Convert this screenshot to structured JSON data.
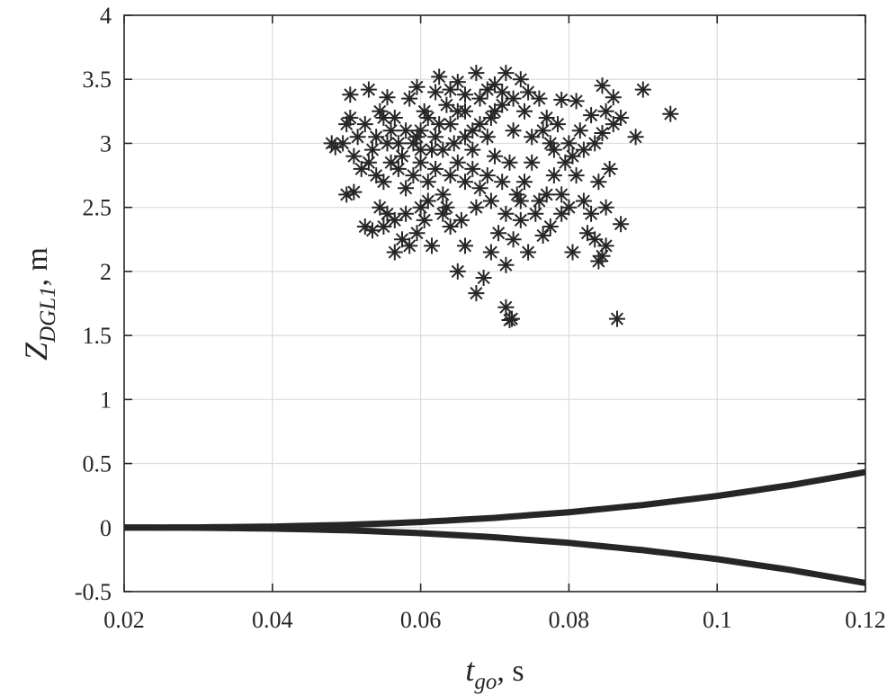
{
  "chart_data": {
    "type": "scatter",
    "xlabel": {
      "main": "t",
      "sub": "go",
      "suffix": ", s"
    },
    "ylabel": {
      "main": "Z",
      "sub": "DGL1",
      "suffix": ", m"
    },
    "xlim": [
      0.02,
      0.12
    ],
    "ylim": [
      -0.5,
      4
    ],
    "x_ticks": [
      0.02,
      0.04,
      0.06,
      0.08,
      0.1,
      0.12
    ],
    "x_tick_labels": [
      "0.02",
      "0.04",
      "0.06",
      "0.08",
      "0.1",
      "0.12"
    ],
    "y_ticks": [
      -0.5,
      0,
      0.5,
      1,
      1.5,
      2,
      2.5,
      3,
      3.5,
      4
    ],
    "y_tick_labels": [
      "-0.5",
      "0",
      "0.5",
      "1",
      "1.5",
      "2",
      "2.5",
      "3",
      "3.5",
      "4"
    ],
    "grid": true,
    "colors": {
      "marks": "#262626",
      "grid": "#dcdcdc"
    },
    "series": [
      {
        "kind": "scatter",
        "marker": "asterisk",
        "points": [
          [
            0.0625,
            3.52
          ],
          [
            0.0675,
            3.55
          ],
          [
            0.0715,
            3.55
          ],
          [
            0.0735,
            3.5
          ],
          [
            0.0845,
            3.45
          ],
          [
            0.09,
            3.42
          ],
          [
            0.053,
            3.42
          ],
          [
            0.0505,
            3.38
          ],
          [
            0.0555,
            3.36
          ],
          [
            0.0595,
            3.44
          ],
          [
            0.065,
            3.48
          ],
          [
            0.07,
            3.46
          ],
          [
            0.076,
            3.35
          ],
          [
            0.079,
            3.34
          ],
          [
            0.081,
            3.33
          ],
          [
            0.086,
            3.36
          ],
          [
            0.087,
            3.2
          ],
          [
            0.0937,
            3.23
          ],
          [
            0.089,
            3.05
          ],
          [
            0.086,
            3.15
          ],
          [
            0.0845,
            3.08
          ],
          [
            0.083,
            3.22
          ],
          [
            0.0815,
            3.1
          ],
          [
            0.08,
            3.0
          ],
          [
            0.078,
            2.95
          ],
          [
            0.077,
            3.2
          ],
          [
            0.075,
            3.05
          ],
          [
            0.074,
            3.25
          ],
          [
            0.0725,
            3.1
          ],
          [
            0.071,
            3.3
          ],
          [
            0.0695,
            3.2
          ],
          [
            0.068,
            3.35
          ],
          [
            0.067,
            3.1
          ],
          [
            0.066,
            3.25
          ],
          [
            0.0645,
            3.0
          ],
          [
            0.0635,
            3.3
          ],
          [
            0.0625,
            3.15
          ],
          [
            0.0615,
            2.95
          ],
          [
            0.0605,
            3.25
          ],
          [
            0.0595,
            3.05
          ],
          [
            0.0585,
            3.35
          ],
          [
            0.0575,
            2.9
          ],
          [
            0.0565,
            3.2
          ],
          [
            0.0555,
            3.0
          ],
          [
            0.0545,
            3.25
          ],
          [
            0.0535,
            2.95
          ],
          [
            0.0525,
            3.15
          ],
          [
            0.0515,
            3.05
          ],
          [
            0.0505,
            3.2
          ],
          [
            0.0495,
            3.0
          ],
          [
            0.0485,
            2.97
          ],
          [
            0.048,
            3.0
          ],
          [
            0.05,
            3.15
          ],
          [
            0.051,
            2.9
          ],
          [
            0.052,
            2.8
          ],
          [
            0.053,
            2.85
          ],
          [
            0.054,
            2.75
          ],
          [
            0.055,
            2.7
          ],
          [
            0.056,
            2.85
          ],
          [
            0.057,
            2.8
          ],
          [
            0.058,
            2.65
          ],
          [
            0.059,
            2.75
          ],
          [
            0.06,
            2.85
          ],
          [
            0.061,
            2.7
          ],
          [
            0.062,
            2.8
          ],
          [
            0.063,
            2.6
          ],
          [
            0.064,
            2.75
          ],
          [
            0.065,
            2.85
          ],
          [
            0.066,
            2.7
          ],
          [
            0.067,
            2.8
          ],
          [
            0.068,
            2.65
          ],
          [
            0.069,
            2.75
          ],
          [
            0.07,
            2.9
          ],
          [
            0.071,
            2.7
          ],
          [
            0.072,
            2.85
          ],
          [
            0.073,
            2.6
          ],
          [
            0.074,
            2.7
          ],
          [
            0.075,
            2.85
          ],
          [
            0.076,
            2.55
          ],
          [
            0.077,
            2.6
          ],
          [
            0.078,
            2.75
          ],
          [
            0.079,
            2.6
          ],
          [
            0.08,
            2.5
          ],
          [
            0.081,
            2.75
          ],
          [
            0.082,
            2.55
          ],
          [
            0.083,
            2.45
          ],
          [
            0.084,
            2.7
          ],
          [
            0.085,
            2.5
          ],
          [
            0.0855,
            2.8
          ],
          [
            0.087,
            2.37
          ],
          [
            0.05,
            2.6
          ],
          [
            0.051,
            2.62
          ],
          [
            0.0525,
            2.35
          ],
          [
            0.0535,
            2.32
          ],
          [
            0.0545,
            2.5
          ],
          [
            0.0555,
            2.45
          ],
          [
            0.0565,
            2.15
          ],
          [
            0.0575,
            2.25
          ],
          [
            0.0585,
            2.2
          ],
          [
            0.0595,
            2.3
          ],
          [
            0.0605,
            2.4
          ],
          [
            0.0615,
            2.2
          ],
          [
            0.063,
            2.45
          ],
          [
            0.064,
            2.35
          ],
          [
            0.065,
            2.0
          ],
          [
            0.066,
            2.2
          ],
          [
            0.0675,
            1.83
          ],
          [
            0.0685,
            1.95
          ],
          [
            0.0695,
            2.15
          ],
          [
            0.0705,
            2.3
          ],
          [
            0.0715,
            2.05
          ],
          [
            0.0725,
            2.25
          ],
          [
            0.0735,
            2.4
          ],
          [
            0.0745,
            2.15
          ],
          [
            0.0765,
            2.28
          ],
          [
            0.0775,
            2.35
          ],
          [
            0.079,
            2.45
          ],
          [
            0.0805,
            2.15
          ],
          [
            0.0825,
            2.3
          ],
          [
            0.0835,
            2.25
          ],
          [
            0.084,
            2.08
          ],
          [
            0.0845,
            2.12
          ],
          [
            0.085,
            2.2
          ],
          [
            0.0715,
            1.72
          ],
          [
            0.072,
            1.62
          ],
          [
            0.0723,
            1.63
          ],
          [
            0.0865,
            1.63
          ],
          [
            0.059,
            3.0
          ],
          [
            0.06,
            3.1
          ],
          [
            0.061,
            3.2
          ],
          [
            0.062,
            3.05
          ],
          [
            0.063,
            2.95
          ],
          [
            0.064,
            3.15
          ],
          [
            0.065,
            3.25
          ],
          [
            0.066,
            3.05
          ],
          [
            0.067,
            2.95
          ],
          [
            0.068,
            3.15
          ],
          [
            0.069,
            3.05
          ],
          [
            0.07,
            3.25
          ],
          [
            0.058,
            3.1
          ],
          [
            0.057,
            3.0
          ],
          [
            0.056,
            3.1
          ],
          [
            0.055,
            3.2
          ],
          [
            0.054,
            3.05
          ],
          [
            0.06,
            2.95
          ],
          [
            0.062,
            3.4
          ],
          [
            0.064,
            3.42
          ],
          [
            0.066,
            3.38
          ],
          [
            0.069,
            3.42
          ],
          [
            0.071,
            3.4
          ],
          [
            0.0725,
            3.35
          ],
          [
            0.0745,
            3.4
          ],
          [
            0.0765,
            3.1
          ],
          [
            0.0775,
            3.0
          ],
          [
            0.0785,
            3.15
          ],
          [
            0.0795,
            2.85
          ],
          [
            0.0805,
            2.9
          ],
          [
            0.082,
            2.95
          ],
          [
            0.0835,
            3.0
          ],
          [
            0.085,
            3.25
          ],
          [
            0.058,
            2.45
          ],
          [
            0.061,
            2.55
          ],
          [
            0.0635,
            2.5
          ],
          [
            0.0655,
            2.4
          ],
          [
            0.0675,
            2.5
          ],
          [
            0.0695,
            2.55
          ],
          [
            0.0715,
            2.45
          ],
          [
            0.0735,
            2.55
          ],
          [
            0.0755,
            2.45
          ],
          [
            0.055,
            2.35
          ],
          [
            0.0565,
            2.4
          ],
          [
            0.06,
            2.5
          ]
        ]
      },
      {
        "kind": "line",
        "name": "",
        "x": [
          0.02,
          0.03,
          0.04,
          0.05,
          0.06,
          0.07,
          0.08,
          0.09,
          0.1,
          0.11,
          0.12
        ],
        "y": [
          0.0,
          0.0014,
          0.0077,
          0.0211,
          0.0434,
          0.0758,
          0.1198,
          0.1764,
          0.2467,
          0.3319,
          0.4328
        ]
      },
      {
        "kind": "line",
        "name": "",
        "x": [
          0.02,
          0.03,
          0.04,
          0.05,
          0.06,
          0.07,
          0.08,
          0.09,
          0.1,
          0.11,
          0.12
        ],
        "y": [
          0.0,
          -0.0014,
          -0.0077,
          -0.0211,
          -0.0434,
          -0.0758,
          -0.1198,
          -0.1764,
          -0.2467,
          -0.3319,
          -0.4328
        ]
      }
    ]
  }
}
